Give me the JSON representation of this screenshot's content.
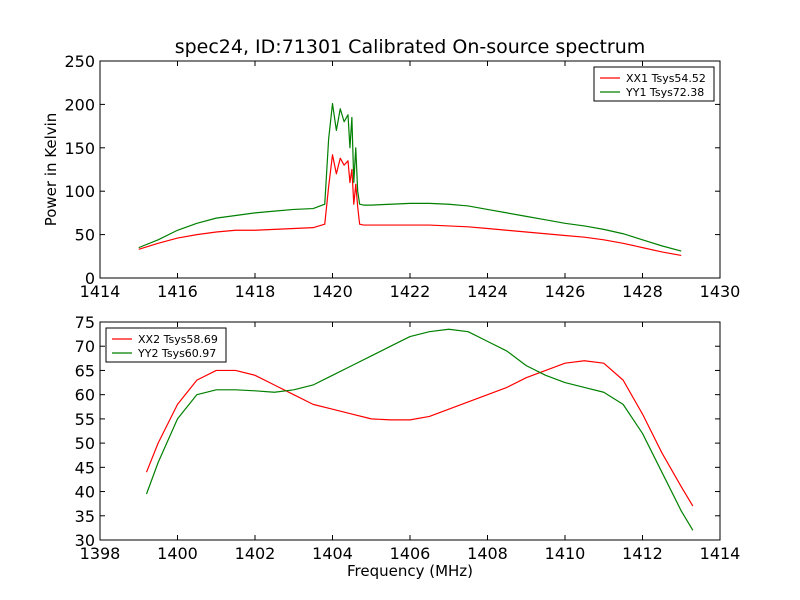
{
  "title": "spec24, ID:71301 Calibrated On-source spectrum",
  "chart_data": [
    {
      "type": "line",
      "ylabel": "Power in Kelvin",
      "xlabel": "",
      "xlim": [
        1414,
        1430
      ],
      "ylim": [
        0,
        250
      ],
      "xticks": [
        1414,
        1416,
        1418,
        1420,
        1422,
        1424,
        1426,
        1428,
        1430
      ],
      "yticks": [
        0,
        50,
        100,
        150,
        200,
        250
      ],
      "legend": "top-right",
      "series": [
        {
          "name": "XX1 Tsys54.52",
          "color": "#ff0000",
          "x": [
            1415.0,
            1415.5,
            1416.0,
            1416.5,
            1417.0,
            1417.5,
            1418.0,
            1418.5,
            1419.0,
            1419.5,
            1419.8,
            1419.9,
            1420.0,
            1420.1,
            1420.2,
            1420.3,
            1420.4,
            1420.45,
            1420.5,
            1420.55,
            1420.6,
            1420.65,
            1420.7,
            1420.8,
            1421.0,
            1421.5,
            1422.0,
            1422.5,
            1423.0,
            1423.5,
            1424.0,
            1424.5,
            1425.0,
            1425.5,
            1426.0,
            1426.5,
            1427.0,
            1427.5,
            1428.0,
            1428.5,
            1429.0
          ],
          "y": [
            33,
            40,
            46,
            50,
            53,
            55,
            55,
            56,
            57,
            58,
            62,
            105,
            142,
            120,
            138,
            130,
            135,
            110,
            125,
            85,
            108,
            82,
            62,
            61,
            61,
            61,
            61,
            61,
            60,
            59,
            57,
            55,
            53,
            51,
            49,
            47,
            44,
            40,
            35,
            30,
            26
          ]
        },
        {
          "name": "YY1 Tsys72.38",
          "color": "#008000",
          "x": [
            1415.0,
            1415.5,
            1416.0,
            1416.5,
            1417.0,
            1417.5,
            1418.0,
            1418.5,
            1419.0,
            1419.5,
            1419.8,
            1419.9,
            1420.0,
            1420.1,
            1420.2,
            1420.3,
            1420.4,
            1420.45,
            1420.5,
            1420.55,
            1420.6,
            1420.65,
            1420.7,
            1420.8,
            1421.0,
            1421.5,
            1422.0,
            1422.5,
            1423.0,
            1423.5,
            1424.0,
            1424.5,
            1425.0,
            1425.5,
            1426.0,
            1426.5,
            1427.0,
            1427.5,
            1428.0,
            1428.5,
            1429.0
          ],
          "y": [
            35,
            44,
            55,
            63,
            69,
            72,
            75,
            77,
            79,
            80,
            85,
            160,
            201,
            170,
            195,
            180,
            188,
            150,
            185,
            110,
            150,
            100,
            85,
            84,
            84,
            85,
            86,
            86,
            85,
            83,
            79,
            75,
            71,
            67,
            63,
            60,
            56,
            51,
            44,
            37,
            31
          ]
        }
      ]
    },
    {
      "type": "line",
      "xlabel": "Frequency (MHz)",
      "ylabel": "",
      "xlim": [
        1398,
        1414
      ],
      "ylim": [
        30,
        75
      ],
      "xticks": [
        1398,
        1400,
        1402,
        1404,
        1406,
        1408,
        1410,
        1412,
        1414
      ],
      "yticks": [
        30,
        35,
        40,
        45,
        50,
        55,
        60,
        65,
        70,
        75
      ],
      "legend": "top-left",
      "series": [
        {
          "name": "XX2 Tsys58.69",
          "color": "#ff0000",
          "x": [
            1399.2,
            1399.5,
            1400.0,
            1400.5,
            1401.0,
            1401.5,
            1402.0,
            1402.5,
            1403.0,
            1403.5,
            1404.0,
            1404.5,
            1405.0,
            1405.5,
            1406.0,
            1406.5,
            1407.0,
            1407.5,
            1408.0,
            1408.5,
            1409.0,
            1409.5,
            1410.0,
            1410.5,
            1411.0,
            1411.5,
            1412.0,
            1412.5,
            1413.0,
            1413.3
          ],
          "y": [
            44,
            50,
            58,
            63,
            65,
            65,
            64,
            62,
            60,
            58,
            57,
            56,
            55,
            54.8,
            54.8,
            55.5,
            57,
            58.5,
            60,
            61.5,
            63.5,
            65,
            66.5,
            67,
            66.5,
            63,
            56,
            48,
            41,
            37
          ]
        },
        {
          "name": "YY2 Tsys60.97",
          "color": "#008000",
          "x": [
            1399.2,
            1399.5,
            1400.0,
            1400.5,
            1401.0,
            1401.5,
            1402.0,
            1402.5,
            1403.0,
            1403.5,
            1404.0,
            1404.5,
            1405.0,
            1405.5,
            1406.0,
            1406.5,
            1407.0,
            1407.5,
            1408.0,
            1408.5,
            1409.0,
            1409.5,
            1410.0,
            1410.5,
            1411.0,
            1411.5,
            1412.0,
            1412.5,
            1413.0,
            1413.3
          ],
          "y": [
            39.5,
            46,
            55,
            60,
            61,
            61,
            60.8,
            60.5,
            61,
            62,
            64,
            66,
            68,
            70,
            72,
            73,
            73.5,
            73,
            71,
            69,
            66,
            64,
            62.5,
            61.5,
            60.5,
            58,
            52,
            44,
            36,
            32
          ]
        }
      ]
    }
  ]
}
